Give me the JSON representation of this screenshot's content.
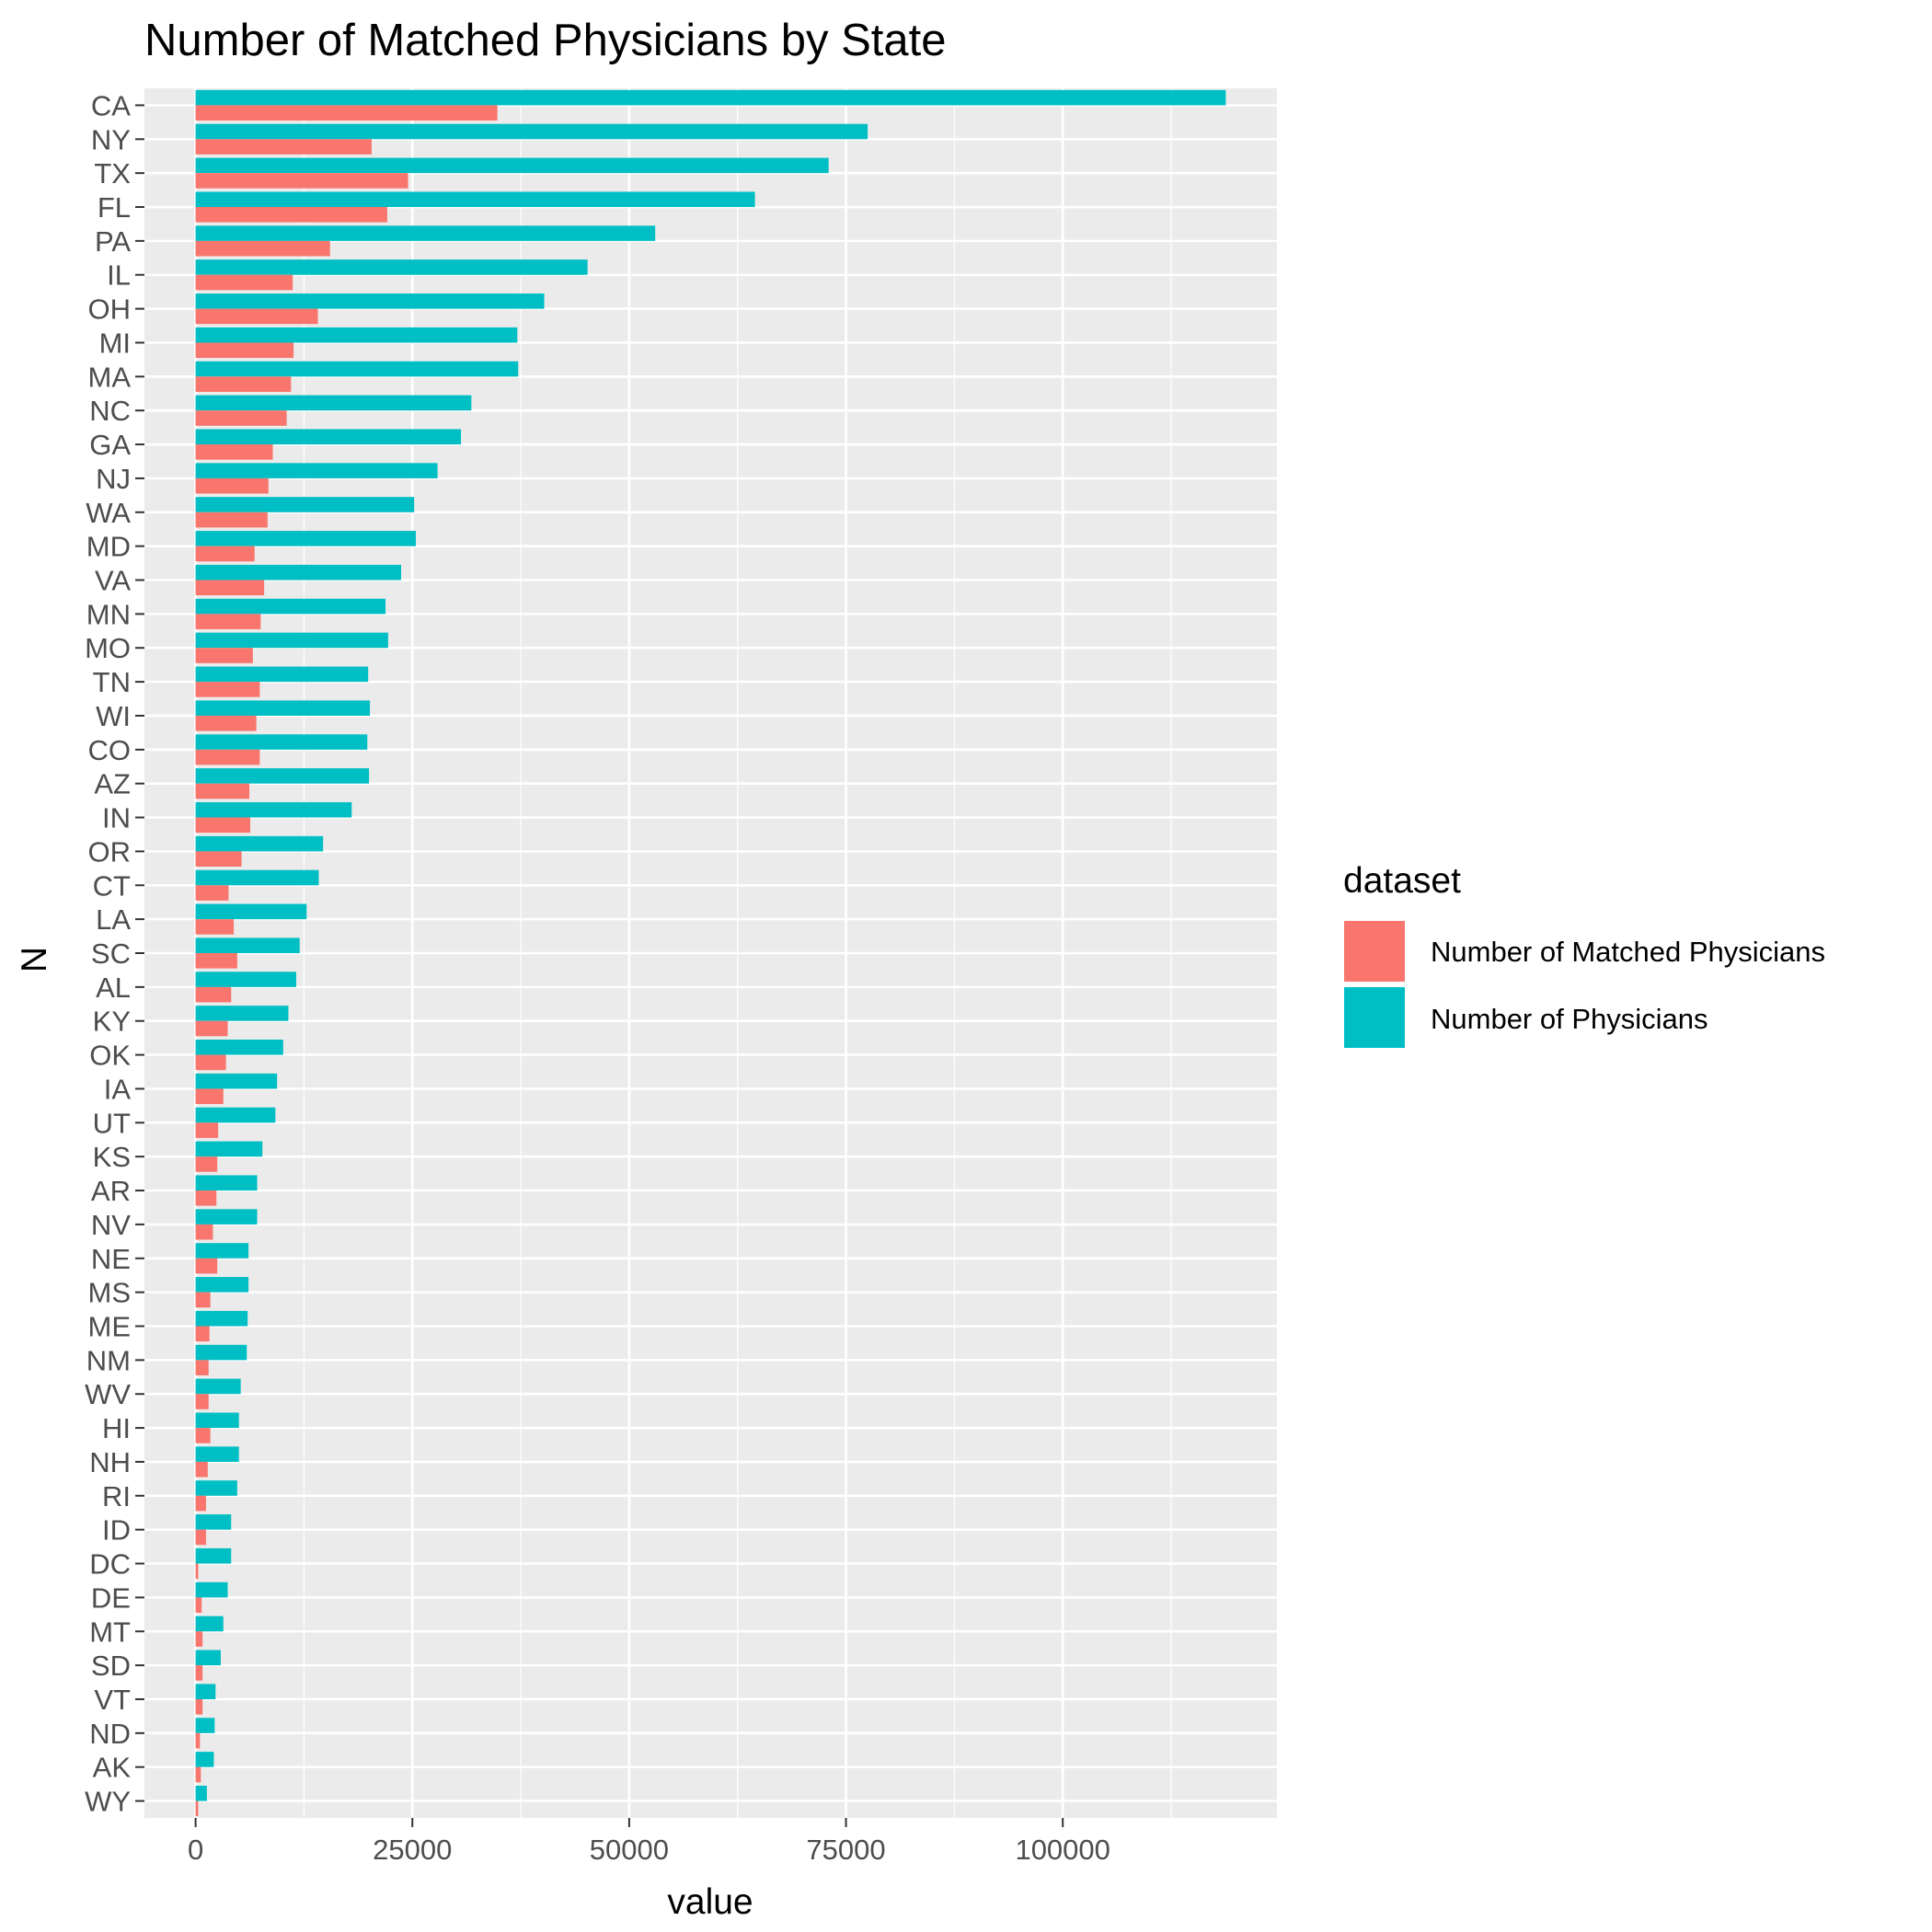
{
  "chart_data": {
    "type": "bar",
    "orientation": "horizontal",
    "title": "Number of Matched Physicians by State",
    "xlabel": "value",
    "ylabel": "N",
    "xlim": [
      -5900,
      124700
    ],
    "xticks": [
      0,
      25000,
      50000,
      75000,
      100000
    ],
    "xtick_labels": [
      "0",
      "25000",
      "50000",
      "75000",
      "100000"
    ],
    "grid": true,
    "categories": [
      "CA",
      "NY",
      "TX",
      "FL",
      "PA",
      "IL",
      "OH",
      "MI",
      "MA",
      "NC",
      "GA",
      "NJ",
      "WA",
      "MD",
      "VA",
      "MN",
      "MO",
      "TN",
      "WI",
      "CO",
      "AZ",
      "IN",
      "OR",
      "CT",
      "LA",
      "SC",
      "AL",
      "KY",
      "OK",
      "IA",
      "UT",
      "KS",
      "AR",
      "NV",
      "NE",
      "MS",
      "ME",
      "NM",
      "WV",
      "HI",
      "NH",
      "RI",
      "ID",
      "DC",
      "DE",
      "MT",
      "SD",
      "VT",
      "ND",
      "AK",
      "WY"
    ],
    "series": [
      {
        "name": "Number of Matched Physicians",
        "color": "#F8766D",
        "values": [
          34800,
          20300,
          24500,
          22100,
          15500,
          11200,
          14100,
          11300,
          11000,
          10500,
          8900,
          8400,
          8300,
          6800,
          7900,
          7500,
          6600,
          7400,
          7000,
          7400,
          6200,
          6300,
          5300,
          3800,
          4400,
          4800,
          4100,
          3700,
          3500,
          3200,
          2600,
          2500,
          2400,
          2000,
          2500,
          1700,
          1600,
          1500,
          1500,
          1700,
          1400,
          1200,
          1200,
          300,
          700,
          800,
          800,
          800,
          500,
          600,
          300
        ]
      },
      {
        "name": "Number of Physicians",
        "color": "#00BFC4",
        "values": [
          118800,
          77500,
          73000,
          64500,
          53000,
          45200,
          40200,
          37100,
          37200,
          31800,
          30600,
          27900,
          25200,
          25400,
          23700,
          21900,
          22200,
          19900,
          20100,
          19800,
          20000,
          18000,
          14700,
          14200,
          12800,
          12000,
          11600,
          10700,
          10100,
          9400,
          9200,
          7700,
          7100,
          7100,
          6100,
          6100,
          6000,
          5900,
          5200,
          5000,
          5000,
          4800,
          4100,
          4100,
          3700,
          3200,
          2900,
          2300,
          2200,
          2100,
          1300
        ]
      }
    ],
    "legend": {
      "title": "dataset",
      "position": "right",
      "entries": [
        "Number of Matched Physicians",
        "Number of Physicians"
      ]
    },
    "colors": {
      "panel_background": "#EBEBEB",
      "grid_line": "#FFFFFF",
      "tick_color": "#333333"
    }
  }
}
